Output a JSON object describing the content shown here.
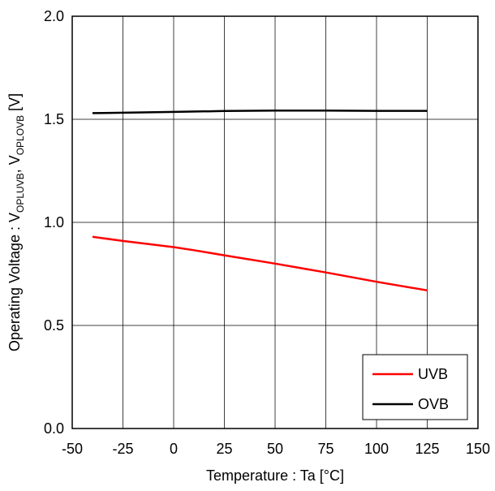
{
  "chart_data": {
    "type": "line",
    "xlabel": "Temperature : Ta [°C]",
    "ylabel": {
      "prefix": "Operating Voltage : V",
      "sub1": "OPLUVB",
      "sep": ",  V",
      "sub2": "OPLOVB",
      "suffix": " [V]"
    },
    "xlim": [
      -50,
      150
    ],
    "ylim": [
      0.0,
      2.0
    ],
    "xticks": [
      "-50",
      "-25",
      "0",
      "25",
      "50",
      "75",
      "100",
      "125",
      "150"
    ],
    "yticks": [
      "0.0",
      "0.5",
      "1.0",
      "1.5",
      "2.0"
    ],
    "grid": true,
    "legend_position": "bottom-right",
    "series": [
      {
        "name": "UVB",
        "color": "#ff0000",
        "x": [
          -40,
          -25,
          0,
          10,
          25,
          50,
          75,
          100,
          125
        ],
        "y": [
          0.93,
          0.91,
          0.88,
          0.865,
          0.84,
          0.8,
          0.757,
          0.712,
          0.67
        ]
      },
      {
        "name": "OVB",
        "color": "#000000",
        "x": [
          -40,
          -25,
          0,
          25,
          50,
          75,
          100,
          125
        ],
        "y": [
          1.53,
          1.532,
          1.536,
          1.54,
          1.542,
          1.542,
          1.541,
          1.541
        ]
      }
    ]
  }
}
